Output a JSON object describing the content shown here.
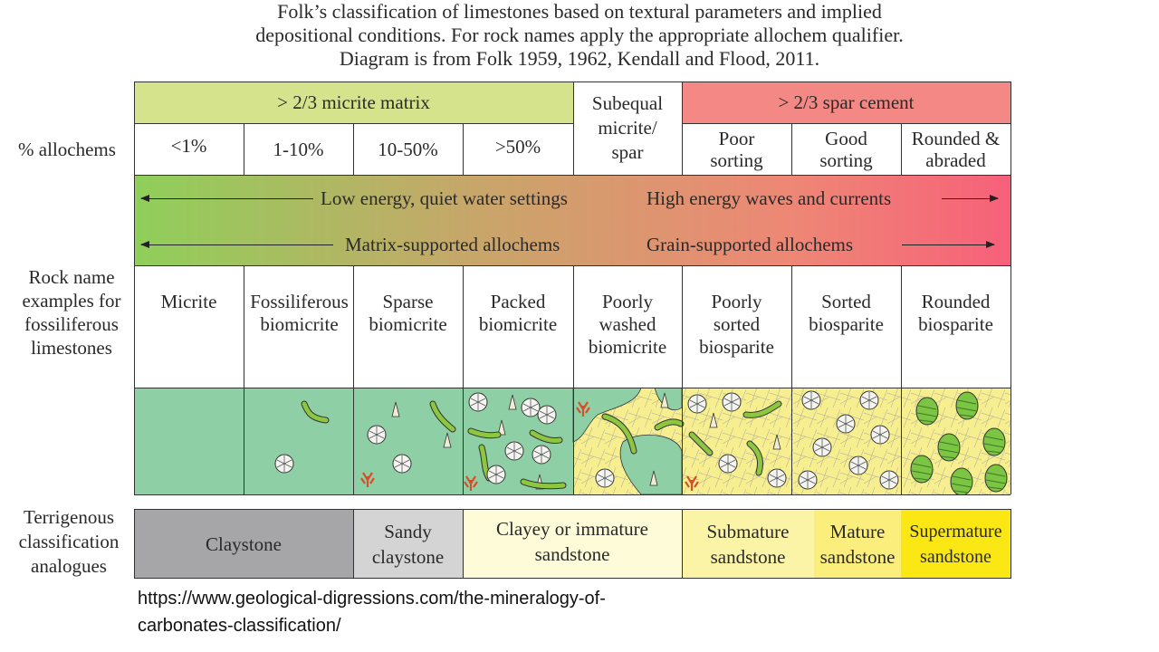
{
  "title": {
    "line1": "Folk’s classification of limestones based on textural parameters and implied",
    "line2": "depositional conditions. For rock names apply the appropriate allochem qualifier.",
    "line3": "Diagram is from Folk 1959, 1962, Kendall and Flood, 2011."
  },
  "header": {
    "micrite_matrix": "> 2/3 micrite matrix",
    "subequal": "Subequal micrite/ spar",
    "spar_cement": "> 2/3 spar cement"
  },
  "allochems": {
    "label": "% allochems",
    "columns": [
      "<1%",
      "1-10%",
      "10-50%",
      ">50%",
      "Poor sorting",
      "Good sorting",
      "Rounded & abraded"
    ]
  },
  "energy": {
    "low_energy": "Low energy, quiet water settings",
    "high_energy": "High energy waves and currents",
    "matrix_supported": "Matrix-supported allochems",
    "grain_supported": "Grain-supported allochems"
  },
  "rock_names": {
    "label": "Rock name examples for fossiliferous limestones",
    "items": [
      "Micrite",
      "Fossiliferous biomicrite",
      "Sparse biomicrite",
      "Packed biomicrite",
      "Poorly washed biomicrite",
      "Poorly sorted biosparite",
      "Sorted biosparite",
      "Rounded biosparite"
    ]
  },
  "terrigenous": {
    "label": "Terrigenous classification analogues",
    "items": [
      {
        "name": "Claystone",
        "color": "#a6a6a8"
      },
      {
        "name": "Sandy claystone",
        "color": "#d4d4d4"
      },
      {
        "name": "Clayey or immature sandstone",
        "color": "#fdfbd8"
      },
      {
        "name": "Submature sandstone",
        "color": "#fbf3a6"
      },
      {
        "name": "Mature sandstone",
        "color": "#fbee7c"
      },
      {
        "name": "Supermature sandstone",
        "color": "#fbe713"
      }
    ]
  },
  "colors": {
    "micrite_header": "#d5e48c",
    "spar_header": "#f38884",
    "micrite_green": "#8ecfa5",
    "spar_yellow": "#f7ef8f",
    "gradient_start": "#8fcf5a",
    "gradient_end": "#f7607a"
  },
  "source_url": "https://www.geological-digressions.com/the-mineralogy-of-carbonates-classification/"
}
